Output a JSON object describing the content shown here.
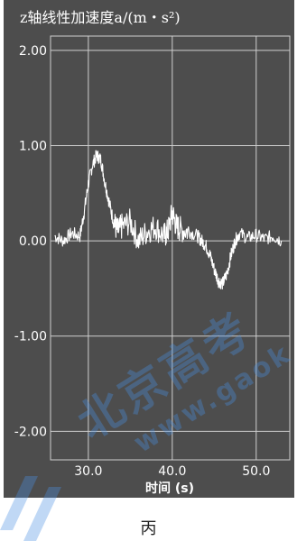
{
  "chart_data": {
    "type": "line",
    "title": "z轴线性加速度a/(m・s²)",
    "xlabel": "时间 (s)",
    "ylabel": "",
    "xlim": [
      25.5,
      54.0
    ],
    "ylim": [
      -2.3,
      2.15
    ],
    "x_ticks": [
      30.0,
      40.0,
      50.0
    ],
    "x_tick_labels": [
      "30.0",
      "40.0",
      "50.0"
    ],
    "y_ticks": [
      2.0,
      1.0,
      0.0,
      -1.0,
      -2.0
    ],
    "y_tick_labels": [
      "2.00",
      "1.00",
      "0.00",
      "-1.00",
      "-2.00"
    ],
    "grid": true,
    "colors": {
      "background": "#4d4d4d",
      "line": "#ffffff",
      "grid": "#cfcfcf"
    },
    "series": [
      {
        "name": "",
        "x": [
          26.0,
          27.0,
          28.0,
          29.0,
          29.5,
          30.0,
          30.5,
          31.0,
          31.5,
          32.0,
          32.5,
          33.0,
          33.5,
          34.0,
          35.0,
          36.0,
          37.0,
          38.0,
          39.0,
          39.5,
          40.0,
          40.5,
          41.0,
          42.0,
          43.0,
          43.5,
          44.0,
          44.5,
          45.0,
          45.5,
          46.0,
          46.5,
          47.0,
          47.5,
          48.0,
          49.0,
          50.0,
          51.0,
          52.0,
          53.0
        ],
        "y": [
          0.05,
          0.0,
          0.08,
          0.05,
          0.3,
          0.6,
          0.8,
          0.9,
          0.85,
          0.6,
          0.4,
          0.2,
          0.1,
          0.15,
          0.2,
          0.0,
          0.1,
          0.15,
          0.05,
          0.1,
          0.3,
          0.15,
          0.12,
          0.1,
          0.05,
          0.0,
          -0.05,
          -0.15,
          -0.3,
          -0.42,
          -0.45,
          -0.35,
          -0.15,
          0.0,
          0.08,
          0.03,
          0.06,
          0.02,
          0.05,
          0.0
        ]
      }
    ]
  },
  "caption": "丙",
  "watermark": {
    "logo": "北京高考",
    "url": "www.gaok"
  }
}
